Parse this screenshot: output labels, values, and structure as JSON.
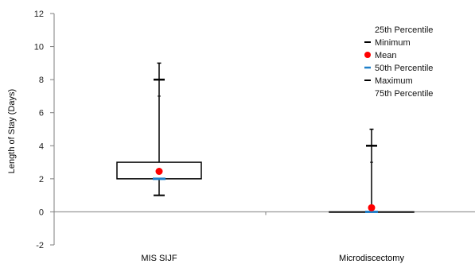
{
  "chart_data": {
    "type": "box",
    "title": "",
    "xlabel": "",
    "ylabel": "Length of Stay (Days)",
    "ylim": [
      -2,
      12
    ],
    "yticks": [
      "-2",
      "0",
      "2",
      "4",
      "6",
      "8",
      "10",
      "12"
    ],
    "ytick_values": [
      -2,
      0,
      2,
      4,
      6,
      8,
      10,
      12
    ],
    "grid": false,
    "legend_position": "top-right",
    "categories": [
      "MIS SIJF",
      "Microdiscectomy"
    ],
    "boxes": [
      {
        "category": "MIS SIJF",
        "min": 1,
        "q1": 2,
        "median": 2,
        "mean": 2.45,
        "q3": 3,
        "max": 8,
        "whisker_top": 9,
        "inner_tick": 7
      },
      {
        "category": "Microdiscectomy",
        "min": 0,
        "q1": 0,
        "median": 0,
        "mean": 0.25,
        "q3": 0,
        "max": 4,
        "whisker_top": 5,
        "inner_tick": 3
      }
    ],
    "legend": [
      {
        "label": "25th Percentile",
        "marker": "none"
      },
      {
        "label": "Minimum",
        "marker": "dash-black"
      },
      {
        "label": "Mean",
        "marker": "dot-red"
      },
      {
        "label": "50th Percentile",
        "marker": "dash-blue"
      },
      {
        "label": "Maximum",
        "marker": "dash-black"
      },
      {
        "label": "75th Percentile",
        "marker": "none"
      }
    ],
    "colors": {
      "mean": "#ff0000",
      "median": "#1f7fc9",
      "lines": "#000000",
      "axis": "#7f7f7f"
    }
  }
}
